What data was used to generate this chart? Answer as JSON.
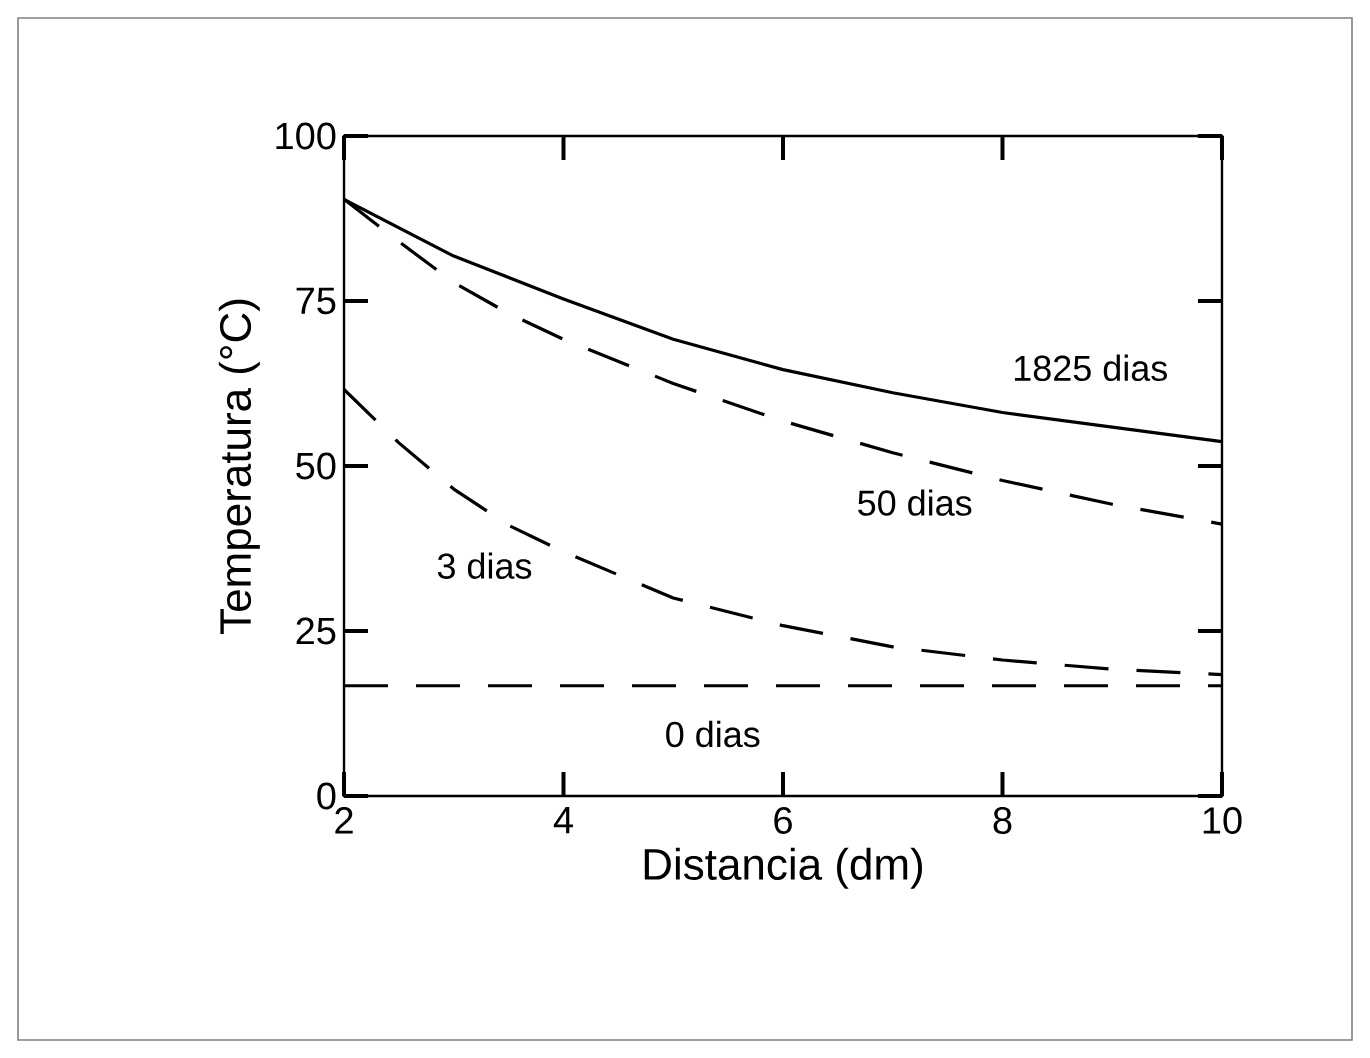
{
  "chart_data": {
    "type": "line",
    "xlabel": "Distancia (dm)",
    "ylabel": "Temperatura (°C)",
    "xlim": [
      2,
      10
    ],
    "ylim": [
      0,
      100
    ],
    "xticks": [
      2,
      4,
      6,
      8,
      10
    ],
    "yticks": [
      0,
      25,
      50,
      75,
      100
    ],
    "grid": false,
    "marker": "none",
    "series": [
      {
        "name": "1825 dias",
        "color": "#000000",
        "line_style": "solid",
        "x": [
          2,
          3,
          4,
          5,
          6,
          7,
          8,
          9,
          10
        ],
        "values": [
          90.4,
          81.8,
          75.3,
          69.2,
          64.6,
          61.1,
          58.1,
          55.9,
          53.7
        ]
      },
      {
        "name": "50 dias",
        "color": "#000000",
        "line_style": "dashed",
        "x": [
          2,
          2.5,
          3,
          3.5,
          4,
          5,
          6,
          7,
          8,
          9,
          10
        ],
        "values": [
          90.4,
          84,
          77.8,
          73.1,
          69.2,
          62.5,
          56.8,
          52,
          47.8,
          44.2,
          41.2
        ]
      },
      {
        "name": "3 dias",
        "color": "#000000",
        "line_style": "dashed",
        "x": [
          2,
          2.5,
          3,
          3.5,
          4,
          5,
          6,
          7,
          8,
          9,
          10
        ],
        "values": [
          61.6,
          53.5,
          46.5,
          41,
          37,
          30,
          25.8,
          22.6,
          20.6,
          19.2,
          18.4
        ]
      },
      {
        "name": "0 dias",
        "color": "#000000",
        "line_style": "dashed",
        "x": [
          2,
          10
        ],
        "values": [
          16.7,
          16.7
        ]
      }
    ]
  }
}
